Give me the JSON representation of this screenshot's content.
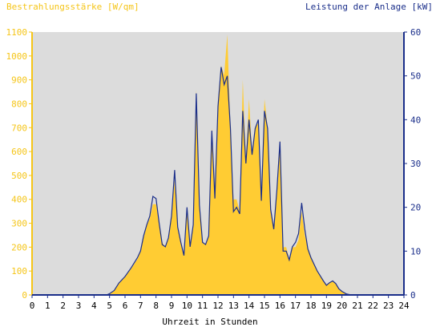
{
  "chart_data": {
    "type": "area",
    "title_left": "Bestrahlungsstärke [W/qm]",
    "title_right": "Leistung der Anlage [kW]",
    "xlabel": "Uhrzeit in Stunden",
    "x_ticks": [
      "0",
      "1",
      "2",
      "3",
      "4",
      "5",
      "6",
      "7",
      "8",
      "9",
      "10",
      "11",
      "12",
      "13",
      "14",
      "15",
      "16",
      "17",
      "18",
      "19",
      "20",
      "21",
      "22",
      "23",
      "24"
    ],
    "y_left_ticks": [
      "0",
      "100",
      "200",
      "300",
      "400",
      "500",
      "600",
      "700",
      "800",
      "900",
      "1000",
      "1100"
    ],
    "y_right_ticks": [
      "0",
      "10",
      "20",
      "30",
      "40",
      "50",
      "60"
    ],
    "xlim": [
      0,
      24
    ],
    "ylim_left": [
      0,
      1100
    ],
    "ylim_right": [
      0,
      60
    ],
    "grid": false,
    "colors": {
      "irradiance": "#ffcc33",
      "power": "#1a2e8a",
      "plot_bg": "#dcdcdc",
      "left_axis": "#f5c518",
      "right_axis": "#1a2e8a"
    },
    "series": [
      {
        "axis": "left",
        "x": [
          0,
          4.8,
          5.0,
          5.3,
          5.6,
          6.0,
          6.4,
          6.8,
          7.0,
          7.2,
          7.4,
          7.6,
          7.8,
          8.0,
          8.2,
          8.4,
          8.6,
          8.8,
          9.0,
          9.2,
          9.4,
          9.6,
          9.8,
          10.0,
          10.2,
          10.4,
          10.6,
          10.8,
          11.0,
          11.2,
          11.4,
          11.6,
          11.8,
          12.0,
          12.2,
          12.4,
          12.6,
          12.8,
          13.0,
          13.2,
          13.4,
          13.6,
          13.8,
          14.0,
          14.2,
          14.4,
          14.6,
          14.8,
          15.0,
          15.2,
          15.4,
          15.6,
          15.8,
          16.0,
          16.2,
          16.4,
          16.6,
          16.8,
          17.0,
          17.2,
          17.4,
          17.6,
          17.8,
          18.0,
          18.4,
          18.8,
          19.0,
          19.2,
          19.4,
          19.6,
          19.8,
          20.0,
          20.3,
          20.6,
          24
        ],
        "values": [
          0,
          0,
          5,
          20,
          50,
          75,
          110,
          150,
          180,
          240,
          290,
          320,
          380,
          380,
          300,
          220,
          200,
          240,
          320,
          480,
          280,
          220,
          170,
          360,
          200,
          300,
          860,
          380,
          220,
          210,
          250,
          700,
          400,
          800,
          960,
          920,
          1090,
          700,
          400,
          400,
          350,
          900,
          560,
          820,
          600,
          700,
          720,
          400,
          820,
          700,
          350,
          280,
          450,
          650,
          200,
          200,
          150,
          200,
          200,
          230,
          350,
          250,
          200,
          160,
          100,
          60,
          40,
          50,
          60,
          50,
          25,
          15,
          5,
          0,
          0
        ]
      },
      {
        "axis": "right",
        "x": [
          0,
          4.8,
          5.0,
          5.3,
          5.6,
          6.0,
          6.4,
          6.8,
          7.0,
          7.2,
          7.4,
          7.6,
          7.8,
          8.0,
          8.2,
          8.4,
          8.6,
          8.8,
          9.0,
          9.2,
          9.4,
          9.6,
          9.8,
          10.0,
          10.2,
          10.4,
          10.6,
          10.8,
          11.0,
          11.2,
          11.4,
          11.6,
          11.8,
          12.0,
          12.2,
          12.4,
          12.6,
          12.8,
          13.0,
          13.2,
          13.4,
          13.6,
          13.8,
          14.0,
          14.2,
          14.4,
          14.6,
          14.8,
          15.0,
          15.2,
          15.4,
          15.6,
          15.8,
          16.0,
          16.2,
          16.4,
          16.6,
          16.8,
          17.0,
          17.2,
          17.4,
          17.6,
          17.8,
          18.0,
          18.4,
          18.8,
          19.0,
          19.2,
          19.4,
          19.6,
          19.8,
          20.0,
          20.3,
          20.6,
          24
        ],
        "values": [
          0,
          0,
          0.3,
          1,
          2.7,
          4.2,
          6.2,
          8.5,
          10,
          13.5,
          16,
          18,
          22.5,
          22,
          16.5,
          11.5,
          11,
          13,
          18,
          28.5,
          15.5,
          12,
          9,
          20,
          11,
          16,
          46,
          20.5,
          12,
          11.5,
          13.5,
          37.5,
          22,
          43,
          52,
          48,
          50,
          38,
          19,
          20,
          18.5,
          42,
          30,
          40,
          32,
          38,
          40,
          21.5,
          42,
          38,
          19.5,
          15,
          24,
          35,
          10,
          10,
          8,
          11,
          12,
          14,
          21,
          15,
          10.5,
          8.5,
          5.5,
          3.2,
          2.2,
          2.8,
          3.2,
          2.6,
          1.4,
          0.8,
          0.2,
          0,
          0
        ]
      }
    ]
  }
}
